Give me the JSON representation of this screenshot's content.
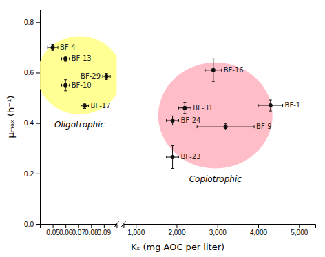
{
  "chart_data": [
    {
      "type": "scatter",
      "x_label": "Kₛ (mg AOC per liter)",
      "y_label": "μₘₐₓ (h⁻¹)",
      "xlim": [
        0.04,
        0.1
      ],
      "xticks": [
        0.05,
        0.06,
        0.07,
        0.08,
        0.09
      ],
      "ylim": [
        0.0,
        0.85
      ],
      "yticks": [
        {
          "value": 0.0,
          "label": "0.0"
        },
        0.2,
        0.4,
        0.6,
        0.8
      ],
      "x": [
        0.05,
        0.06,
        0.06,
        0.092,
        0.075
      ],
      "values": [
        0.7,
        0.655,
        0.55,
        0.585,
        0.468
      ],
      "xerr": [
        0.004,
        0.003,
        0.003,
        0.003,
        0.003
      ],
      "yerr": [
        0.012,
        0.01,
        0.022,
        0.012,
        0.01
      ],
      "point_labels": [
        "BF-4",
        "BF-13",
        "BF-10",
        "BF-29",
        "BF-17"
      ],
      "color": "#111111",
      "marker": "circle",
      "region": {
        "cx": 0.071,
        "cy": 0.59,
        "rx": 0.033,
        "ry": 0.155,
        "color": "#FFFF88"
      },
      "annotations": [
        "Oligotrophic"
      ]
    },
    {
      "type": "scatter",
      "tick_labels": "x",
      "xlim": [
        700,
        5400
      ],
      "xticks": [
        {
          "value": 1000,
          "label": "1,000"
        },
        {
          "value": 2000,
          "label": "2,000"
        },
        {
          "value": 3000,
          "label": "3,000"
        },
        {
          "value": 4000,
          "label": "4,000"
        },
        {
          "value": 5000,
          "label": "5,000"
        }
      ],
      "ylim": [
        0.0,
        0.85
      ],
      "x": [
        2900,
        2200,
        1900,
        3200,
        1900,
        4300
      ],
      "values": [
        0.61,
        0.46,
        0.41,
        0.385,
        0.265,
        0.47
      ],
      "xerr": [
        200,
        150,
        150,
        700,
        150,
        300
      ],
      "yerr": [
        0.045,
        0.022,
        0.018,
        0.012,
        0.045,
        0.022
      ],
      "point_labels": [
        "BF-16",
        "BF-31",
        "BF-24",
        "BF-9",
        "BF-23",
        "BF-1"
      ],
      "color": "#111111",
      "marker": "circle",
      "region": {
        "cx": 2950,
        "cy": 0.43,
        "rx": 1400,
        "ry": 0.21,
        "color": "#FFB6C1"
      },
      "annotations": [
        "Copiotrophic"
      ]
    }
  ]
}
